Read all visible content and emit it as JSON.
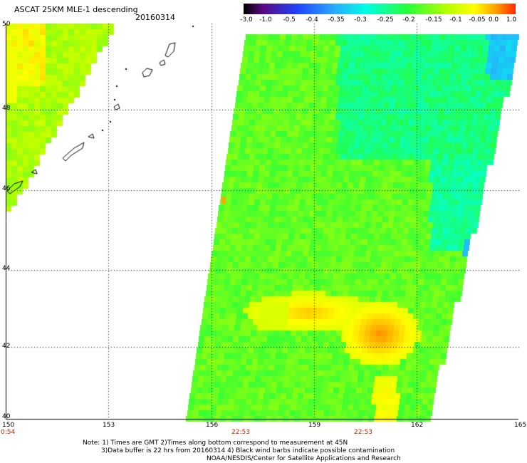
{
  "header": {
    "title": "ASCAT 25KM MLE-1 descending",
    "date": "20160314"
  },
  "colorbar": {
    "labels": [
      "-3.0",
      "-1.0",
      "-0.5",
      "-0.4",
      "-0.35",
      "-0.3",
      "-0.25",
      "-0.2",
      "-0.15",
      "-0.1",
      "-0.05",
      "0.0",
      "1.0"
    ]
  },
  "axes": {
    "lon_labels": [
      "150",
      "153",
      "156",
      "159",
      "162",
      "165"
    ],
    "lat_labels": [
      "50",
      "48",
      "46",
      "44",
      "42",
      "40"
    ],
    "time_labels": [
      "0:54",
      "22:53",
      "22:53"
    ]
  },
  "notes": {
    "line1": "Note: 1) Times are GMT 2)Times along bottom correspond to measurement at 45N",
    "line2": "3)Data buffer is 22 hrs from 20160314 4) Black wind barbs indicate possible contamination",
    "line3": "NOAA/NESDIS/Center for Satellite Applications and Research"
  },
  "map": {
    "lon_range": [
      150,
      165
    ],
    "lat_range": [
      40,
      50
    ],
    "gridlines": "dotted",
    "colors": {
      "purple": "#5a0a82",
      "blue": "#1e46ff",
      "light_blue": "#2aa8ff",
      "cyan": "#00ffe6",
      "green": "#27ff3a",
      "yellow_green": "#b8ff00",
      "yellow": "#ffff00",
      "orange": "#ff9c00",
      "red": "#ff2a00"
    }
  }
}
